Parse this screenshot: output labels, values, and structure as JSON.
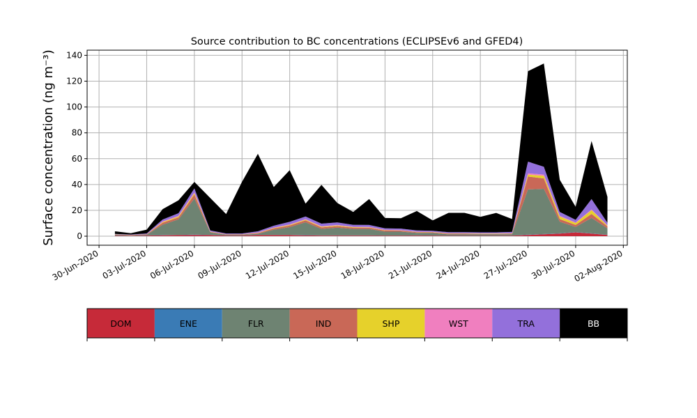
{
  "chart_data": {
    "type": "area",
    "stacked": true,
    "title": "Source contribution to BC concentrations (ECLIPSEv6 and GFED4)",
    "ylabel": "Surface concentration (ng m⁻³)",
    "ylim": [
      -7,
      144
    ],
    "xlim": [
      "2020-06-29T06:00",
      "2020-08-02T06:00"
    ],
    "grid": true,
    "x_tick_labels": [
      "30-Jun-2020",
      "03-Jul-2020",
      "06-Jul-2020",
      "09-Jul-2020",
      "12-Jul-2020",
      "15-Jul-2020",
      "18-Jul-2020",
      "21-Jul-2020",
      "24-Jul-2020",
      "27-Jul-2020",
      "30-Jul-2020",
      "02-Aug-2020"
    ],
    "x_tick_dates": [
      "2020-06-30",
      "2020-07-03",
      "2020-07-06",
      "2020-07-09",
      "2020-07-12",
      "2020-07-15",
      "2020-07-18",
      "2020-07-21",
      "2020-07-24",
      "2020-07-27",
      "2020-07-30",
      "2020-08-02"
    ],
    "y_tick_values": [
      0,
      20,
      40,
      60,
      80,
      100,
      120,
      140
    ],
    "y_tick_labels": [
      "0",
      "20",
      "40",
      "60",
      "80",
      "100",
      "120",
      "140"
    ],
    "legend": {
      "placement": "bottom colorbar",
      "entries": [
        {
          "label": "DOM",
          "color": "#c62a39",
          "text_color": "#000000"
        },
        {
          "label": "ENE",
          "color": "#3a7bb5",
          "text_color": "#000000"
        },
        {
          "label": "FLR",
          "color": "#6e8372",
          "text_color": "#000000"
        },
        {
          "label": "IND",
          "color": "#c96857",
          "text_color": "#000000"
        },
        {
          "label": "SHP",
          "color": "#e6d12b",
          "text_color": "#000000"
        },
        {
          "label": "WST",
          "color": "#f07fbf",
          "text_color": "#000000"
        },
        {
          "label": "TRA",
          "color": "#9370db",
          "text_color": "#000000"
        },
        {
          "label": "BB",
          "color": "#000000",
          "text_color": "#ffffff"
        }
      ]
    },
    "x": [
      "2020-07-01",
      "2020-07-02",
      "2020-07-03",
      "2020-07-04",
      "2020-07-05",
      "2020-07-06",
      "2020-07-07",
      "2020-07-08",
      "2020-07-09",
      "2020-07-10",
      "2020-07-11",
      "2020-07-12",
      "2020-07-13",
      "2020-07-14",
      "2020-07-15",
      "2020-07-16",
      "2020-07-17",
      "2020-07-18",
      "2020-07-19",
      "2020-07-20",
      "2020-07-21",
      "2020-07-22",
      "2020-07-23",
      "2020-07-24",
      "2020-07-25",
      "2020-07-26",
      "2020-07-27",
      "2020-07-28",
      "2020-07-29",
      "2020-07-30",
      "2020-07-31",
      "2020-08-01"
    ],
    "series": [
      {
        "name": "DOM",
        "color": "#c62a39",
        "values": [
          0.5,
          0.3,
          0.5,
          0.7,
          0.8,
          1.0,
          0.8,
          0.5,
          0.5,
          0.8,
          0.8,
          0.8,
          0.6,
          0.5,
          0.5,
          0.5,
          0.5,
          0.4,
          0.4,
          0.5,
          0.4,
          0.3,
          0.3,
          0.3,
          0.3,
          0.4,
          1.0,
          1.5,
          2.0,
          3.0,
          2.0,
          1.0
        ]
      },
      {
        "name": "ENE",
        "color": "#3a7bb5",
        "values": [
          0.1,
          0.1,
          0.1,
          0.2,
          0.2,
          0.2,
          0.2,
          0.1,
          0.1,
          0.1,
          0.2,
          0.2,
          0.2,
          0.1,
          0.1,
          0.1,
          0.1,
          0.1,
          0.1,
          0.1,
          0.1,
          0.1,
          0.1,
          0.1,
          0.1,
          0.1,
          0.2,
          0.2,
          0.2,
          0.2,
          0.2,
          0.1
        ]
      },
      {
        "name": "FLR",
        "color": "#6e8372",
        "values": [
          0.5,
          0.3,
          0.5,
          8.0,
          12.0,
          28.0,
          2.0,
          0.5,
          0.5,
          1.0,
          4.0,
          6.0,
          10.0,
          5.0,
          6.0,
          5.0,
          5.0,
          3.0,
          3.0,
          2.0,
          2.0,
          1.0,
          1.0,
          1.0,
          1.0,
          1.0,
          35.0,
          35.0,
          9.0,
          4.0,
          12.0,
          5.0
        ]
      },
      {
        "name": "IND",
        "color": "#c96857",
        "values": [
          0.2,
          0.2,
          0.3,
          1.5,
          1.5,
          3.0,
          0.3,
          0.3,
          0.3,
          0.5,
          1.0,
          1.2,
          1.5,
          1.2,
          1.2,
          1.0,
          1.0,
          0.8,
          0.8,
          0.5,
          0.5,
          0.5,
          0.5,
          0.4,
          0.4,
          0.4,
          10.0,
          8.0,
          2.0,
          1.5,
          3.0,
          1.5
        ]
      },
      {
        "name": "SHP",
        "color": "#e6d12b",
        "values": [
          0.1,
          0.1,
          0.1,
          0.5,
          0.8,
          1.0,
          0.2,
          0.1,
          0.1,
          0.2,
          0.3,
          0.5,
          0.5,
          0.5,
          0.5,
          0.4,
          0.3,
          0.3,
          0.2,
          0.2,
          0.2,
          0.2,
          0.2,
          0.2,
          0.2,
          0.2,
          1.5,
          2.0,
          2.0,
          1.5,
          3.0,
          0.5
        ]
      },
      {
        "name": "WST",
        "color": "#f07fbf",
        "values": [
          0.1,
          0.1,
          0.1,
          0.5,
          0.5,
          0.8,
          0.2,
          0.1,
          0.1,
          0.2,
          0.3,
          0.4,
          0.4,
          0.4,
          0.4,
          0.3,
          0.3,
          0.3,
          0.2,
          0.2,
          0.2,
          0.2,
          0.2,
          0.2,
          0.2,
          0.2,
          1.0,
          1.0,
          0.5,
          0.5,
          0.5,
          0.3
        ]
      },
      {
        "name": "TRA",
        "color": "#9370db",
        "values": [
          0.3,
          0.2,
          0.5,
          1.5,
          2.0,
          3.0,
          0.8,
          0.5,
          0.5,
          1.0,
          1.5,
          2.0,
          2.0,
          2.0,
          2.0,
          1.5,
          1.5,
          1.2,
          1.2,
          1.0,
          0.8,
          0.8,
          0.8,
          0.8,
          0.8,
          1.0,
          9.0,
          6.0,
          3.0,
          2.0,
          8.0,
          2.0
        ]
      },
      {
        "name": "BB",
        "color": "#000000",
        "values": [
          2.0,
          1.0,
          3.0,
          8.0,
          10.0,
          5.0,
          25.0,
          15.0,
          40.0,
          60.0,
          30.0,
          40.0,
          10.0,
          30.0,
          15.0,
          10.0,
          20.0,
          8.0,
          8.0,
          15.0,
          8.0,
          15.0,
          15.0,
          12.0,
          15.0,
          10.0,
          70.0,
          80.0,
          25.0,
          10.0,
          45.0,
          20.0
        ]
      }
    ]
  }
}
